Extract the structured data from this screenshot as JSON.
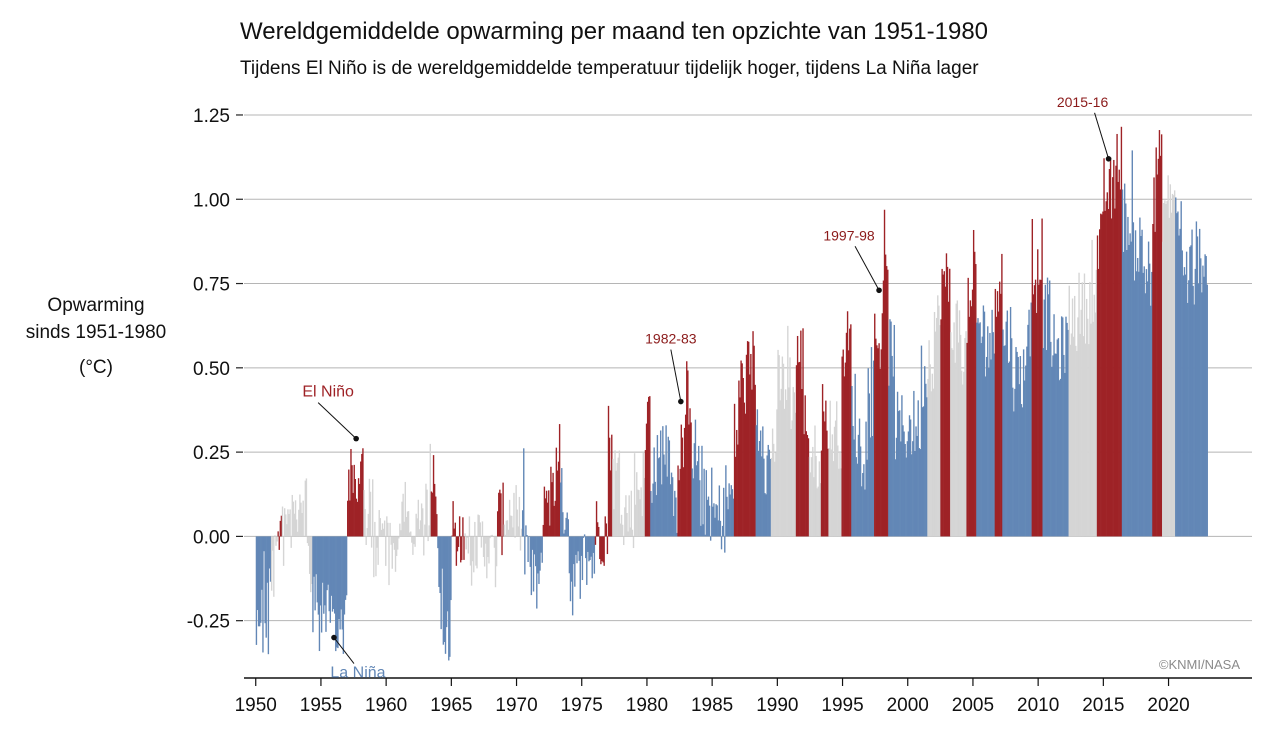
{
  "chart_data": {
    "type": "bar",
    "title": "Wereldgemiddelde opwarming per maand ten opzichte van 1951-1980",
    "subtitle": "Tijdens El Niño is de wereldgemiddelde temperatuur tijdelijk hoger, tijdens La Niña lager",
    "ylabel": [
      "Opwarming",
      "sinds 1951-1980",
      "(°C)"
    ],
    "ylim": [
      -0.42,
      1.33
    ],
    "yticks": [
      -0.25,
      0,
      0.25,
      0.5,
      0.75,
      1.0,
      1.25
    ],
    "ytick_labels": [
      "-0.25",
      "0.00",
      "0.25",
      "0.50",
      "0.75",
      "1.00",
      "1.25"
    ],
    "xlim": [
      1949.1,
      2026.4
    ],
    "xticks": [
      1950,
      1955,
      1960,
      1965,
      1970,
      1975,
      1980,
      1985,
      1990,
      1995,
      2000,
      2005,
      2010,
      2015,
      2020
    ],
    "xtick_labels": [
      "1950",
      "1955",
      "1960",
      "1965",
      "1970",
      "1975",
      "1980",
      "1985",
      "1990",
      "1995",
      "2000",
      "2005",
      "2010",
      "2015",
      "2020"
    ],
    "grid": "horizontal",
    "data_start_year": 1950,
    "data_end_year": 2023,
    "phase_colors": {
      "el_nino": "#9e2226",
      "la_nina": "#6287b6",
      "neutral": "#d5d5d5"
    },
    "yearly_anomaly": [
      -0.18,
      -0.07,
      0.02,
      0.08,
      -0.12,
      -0.14,
      -0.22,
      0.05,
      0.06,
      -0.03,
      -0.04,
      0.06,
      0.02,
      0.05,
      -0.2,
      -0.1,
      -0.04,
      -0.02,
      -0.07,
      0.08,
      0.03,
      -0.08,
      0.01,
      0.16,
      -0.07,
      -0.01,
      -0.1,
      0.18,
      0.07,
      0.16,
      0.26,
      0.32,
      0.14,
      0.31,
      0.16,
      0.12,
      0.18,
      0.33,
      0.4,
      0.28,
      0.45,
      0.41,
      0.23,
      0.24,
      0.31,
      0.45,
      0.35,
      0.46,
      0.61,
      0.38,
      0.39,
      0.54,
      0.63,
      0.62,
      0.54,
      0.68,
      0.64,
      0.66,
      0.54,
      0.65,
      0.72,
      0.61,
      0.65,
      0.68,
      0.74,
      0.9,
      1.01,
      0.92,
      0.85,
      0.98,
      1.01,
      0.84,
      0.89,
      1.0
    ],
    "phase_segments": [
      {
        "start": 1950.0,
        "end": 1951.1,
        "phase": "la_nina"
      },
      {
        "start": 1951.1,
        "end": 1951.6,
        "phase": "neutral"
      },
      {
        "start": 1951.6,
        "end": 1952.0,
        "phase": "el_nino"
      },
      {
        "start": 1952.0,
        "end": 1954.3,
        "phase": "neutral"
      },
      {
        "start": 1954.3,
        "end": 1957.0,
        "phase": "la_nina"
      },
      {
        "start": 1957.0,
        "end": 1958.2,
        "phase": "el_nino"
      },
      {
        "start": 1958.2,
        "end": 1963.4,
        "phase": "neutral"
      },
      {
        "start": 1963.4,
        "end": 1963.9,
        "phase": "el_nino"
      },
      {
        "start": 1963.9,
        "end": 1965.0,
        "phase": "la_nina"
      },
      {
        "start": 1965.0,
        "end": 1966.0,
        "phase": "el_nino"
      },
      {
        "start": 1966.0,
        "end": 1968.5,
        "phase": "neutral"
      },
      {
        "start": 1968.5,
        "end": 1969.0,
        "phase": "el_nino"
      },
      {
        "start": 1969.0,
        "end": 1970.4,
        "phase": "neutral"
      },
      {
        "start": 1970.4,
        "end": 1972.0,
        "phase": "la_nina"
      },
      {
        "start": 1972.0,
        "end": 1973.3,
        "phase": "el_nino"
      },
      {
        "start": 1973.3,
        "end": 1976.0,
        "phase": "la_nina"
      },
      {
        "start": 1976.0,
        "end": 1977.3,
        "phase": "el_nino"
      },
      {
        "start": 1977.3,
        "end": 1979.8,
        "phase": "neutral"
      },
      {
        "start": 1979.8,
        "end": 1980.2,
        "phase": "el_nino"
      },
      {
        "start": 1980.2,
        "end": 1982.3,
        "phase": "la_nina"
      },
      {
        "start": 1982.3,
        "end": 1983.4,
        "phase": "el_nino"
      },
      {
        "start": 1983.4,
        "end": 1986.6,
        "phase": "la_nina"
      },
      {
        "start": 1986.6,
        "end": 1988.3,
        "phase": "el_nino"
      },
      {
        "start": 1988.3,
        "end": 1989.5,
        "phase": "la_nina"
      },
      {
        "start": 1989.5,
        "end": 1991.4,
        "phase": "neutral"
      },
      {
        "start": 1991.4,
        "end": 1992.4,
        "phase": "el_nino"
      },
      {
        "start": 1992.4,
        "end": 1993.3,
        "phase": "neutral"
      },
      {
        "start": 1993.3,
        "end": 1993.9,
        "phase": "el_nino"
      },
      {
        "start": 1993.9,
        "end": 1994.9,
        "phase": "neutral"
      },
      {
        "start": 1994.9,
        "end": 1995.6,
        "phase": "el_nino"
      },
      {
        "start": 1995.6,
        "end": 1997.4,
        "phase": "la_nina"
      },
      {
        "start": 1997.4,
        "end": 1998.5,
        "phase": "el_nino"
      },
      {
        "start": 1998.5,
        "end": 2001.5,
        "phase": "la_nina"
      },
      {
        "start": 2001.5,
        "end": 2002.5,
        "phase": "neutral"
      },
      {
        "start": 2002.5,
        "end": 2003.2,
        "phase": "el_nino"
      },
      {
        "start": 2003.2,
        "end": 2004.5,
        "phase": "neutral"
      },
      {
        "start": 2004.5,
        "end": 2005.2,
        "phase": "el_nino"
      },
      {
        "start": 2005.2,
        "end": 2006.6,
        "phase": "la_nina"
      },
      {
        "start": 2006.6,
        "end": 2007.2,
        "phase": "el_nino"
      },
      {
        "start": 2007.2,
        "end": 2009.5,
        "phase": "la_nina"
      },
      {
        "start": 2009.5,
        "end": 2010.3,
        "phase": "el_nino"
      },
      {
        "start": 2010.3,
        "end": 2012.3,
        "phase": "la_nina"
      },
      {
        "start": 2012.3,
        "end": 2014.5,
        "phase": "neutral"
      },
      {
        "start": 2014.5,
        "end": 2016.4,
        "phase": "el_nino"
      },
      {
        "start": 2016.4,
        "end": 2018.7,
        "phase": "la_nina"
      },
      {
        "start": 2018.7,
        "end": 2019.5,
        "phase": "el_nino"
      },
      {
        "start": 2019.5,
        "end": 2020.5,
        "phase": "neutral"
      },
      {
        "start": 2020.5,
        "end": 2023.0,
        "phase": "la_nina"
      }
    ],
    "annotations": [
      {
        "text": "El Niño",
        "x": 1957.7,
        "y": 0.29,
        "color": "#9e2226"
      },
      {
        "text": "La Niña",
        "x": 1956.0,
        "y": -0.3,
        "color": "#6287b6"
      },
      {
        "text": "1982-83",
        "x": 1982.6,
        "y": 0.4,
        "color": "#8b1a1a"
      },
      {
        "text": "1997-98",
        "x": 1997.8,
        "y": 0.73,
        "color": "#8b1a1a"
      },
      {
        "text": "2015-16",
        "x": 2015.4,
        "y": 1.12,
        "color": "#8b1a1a"
      }
    ],
    "credit": "©KNMI/NASA"
  }
}
